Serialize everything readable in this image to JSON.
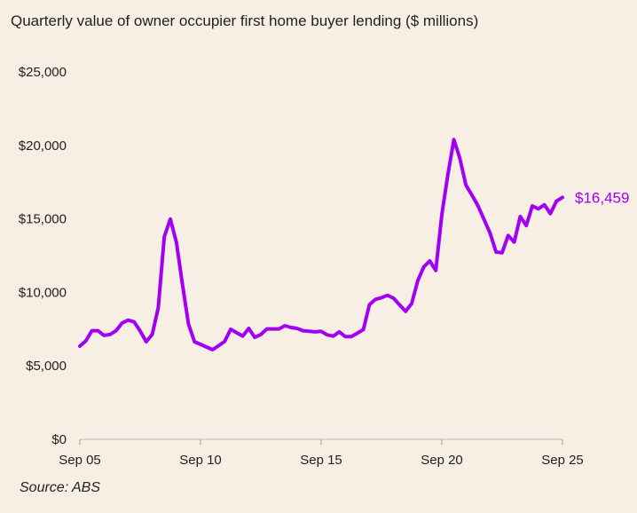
{
  "chart_data": {
    "type": "line",
    "title": "Quarterly value of owner occupier first home buyer lending ($ millions)",
    "source": "Source: ABS",
    "xlabel": "",
    "ylabel": "",
    "ylim": [
      0,
      25000
    ],
    "yticks": [
      0,
      5000,
      10000,
      15000,
      20000,
      25000
    ],
    "ytick_labels": [
      "$0",
      "$5,000",
      "$10,000",
      "$15,000",
      "$20,000",
      "$25,000"
    ],
    "xtick_labels": [
      "Sep 05",
      "Sep 10",
      "Sep 15",
      "Sep 20",
      "Sep 25"
    ],
    "grid": false,
    "line_color": "#a200f2",
    "end_label": "$16,459",
    "x": [
      "Sep 05",
      "Dec 05",
      "Mar 06",
      "Jun 06",
      "Sep 06",
      "Dec 06",
      "Mar 07",
      "Jun 07",
      "Sep 07",
      "Dec 07",
      "Mar 08",
      "Jun 08",
      "Sep 08",
      "Dec 08",
      "Mar 09",
      "Jun 09",
      "Sep 09",
      "Dec 09",
      "Mar 10",
      "Jun 10",
      "Sep 10",
      "Dec 10",
      "Mar 11",
      "Jun 11",
      "Sep 11",
      "Dec 11",
      "Mar 12",
      "Jun 12",
      "Sep 12",
      "Dec 12",
      "Mar 13",
      "Jun 13",
      "Sep 13",
      "Dec 13",
      "Mar 14",
      "Jun 14",
      "Sep 14",
      "Dec 14",
      "Mar 15",
      "Jun 15",
      "Sep 15",
      "Dec 15",
      "Mar 16",
      "Jun 16",
      "Sep 16",
      "Dec 16",
      "Mar 17",
      "Jun 17",
      "Sep 17",
      "Dec 17",
      "Mar 18",
      "Jun 18",
      "Sep 18",
      "Dec 18",
      "Mar 19",
      "Jun 19",
      "Sep 19",
      "Dec 19",
      "Mar 20",
      "Jun 20",
      "Sep 20",
      "Dec 20",
      "Mar 21",
      "Jun 21",
      "Sep 21",
      "Dec 21",
      "Mar 22",
      "Jun 22",
      "Sep 22",
      "Dec 22",
      "Mar 23",
      "Jun 23",
      "Sep 23",
      "Dec 23",
      "Mar 24",
      "Jun 24",
      "Sep 24",
      "Dec 24",
      "Mar 25",
      "Jun 25",
      "Sep 25"
    ],
    "values": [
      6340,
      6700,
      7390,
      7390,
      7070,
      7130,
      7390,
      7910,
      8110,
      7990,
      7370,
      6640,
      7140,
      8960,
      13790,
      14990,
      13410,
      10570,
      7850,
      6640,
      6460,
      6280,
      6100,
      6370,
      6660,
      7490,
      7250,
      7020,
      7550,
      6940,
      7130,
      7510,
      7510,
      7510,
      7730,
      7610,
      7550,
      7390,
      7350,
      7310,
      7350,
      7110,
      7020,
      7310,
      6990,
      6990,
      7220,
      7470,
      9160,
      9520,
      9640,
      9800,
      9600,
      9150,
      8710,
      9240,
      10770,
      11730,
      12140,
      11490,
      15280,
      18010,
      20390,
      19100,
      17290,
      16610,
      15880,
      14960,
      14030,
      12740,
      12700,
      13870,
      13420,
      15160,
      14550,
      15880,
      15680,
      15960,
      15360,
      16200,
      16459
    ]
  }
}
